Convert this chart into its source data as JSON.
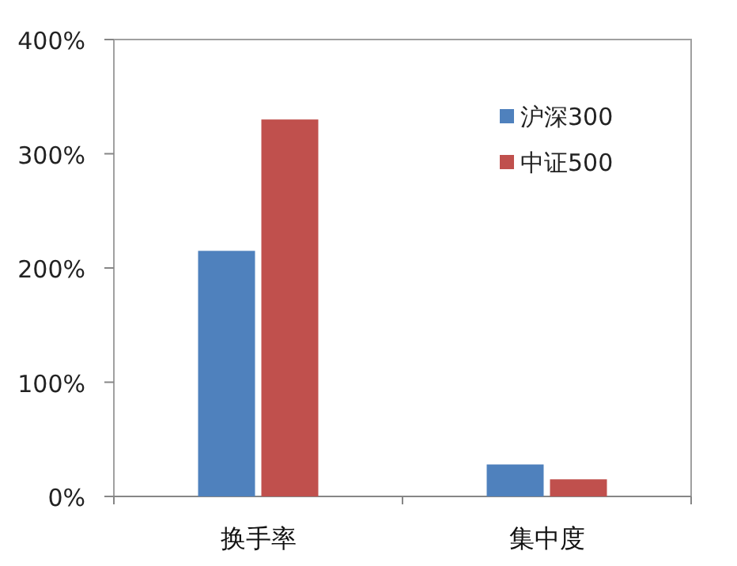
{
  "chart_data": {
    "type": "bar",
    "categories": [
      "换手率",
      "集中度"
    ],
    "series": [
      {
        "name": "沪深300",
        "color": "#4f81bd",
        "values": [
          215,
          28
        ]
      },
      {
        "name": "中证500",
        "color": "#c0504d",
        "values": [
          330,
          15
        ]
      }
    ],
    "ylim": [
      0,
      400
    ],
    "yticks": [
      {
        "value": 0,
        "label": "0%"
      },
      {
        "value": 100,
        "label": "100%"
      },
      {
        "value": 200,
        "label": "200%"
      },
      {
        "value": 300,
        "label": "300%"
      },
      {
        "value": 400,
        "label": "400%"
      }
    ],
    "legend": "top right"
  }
}
